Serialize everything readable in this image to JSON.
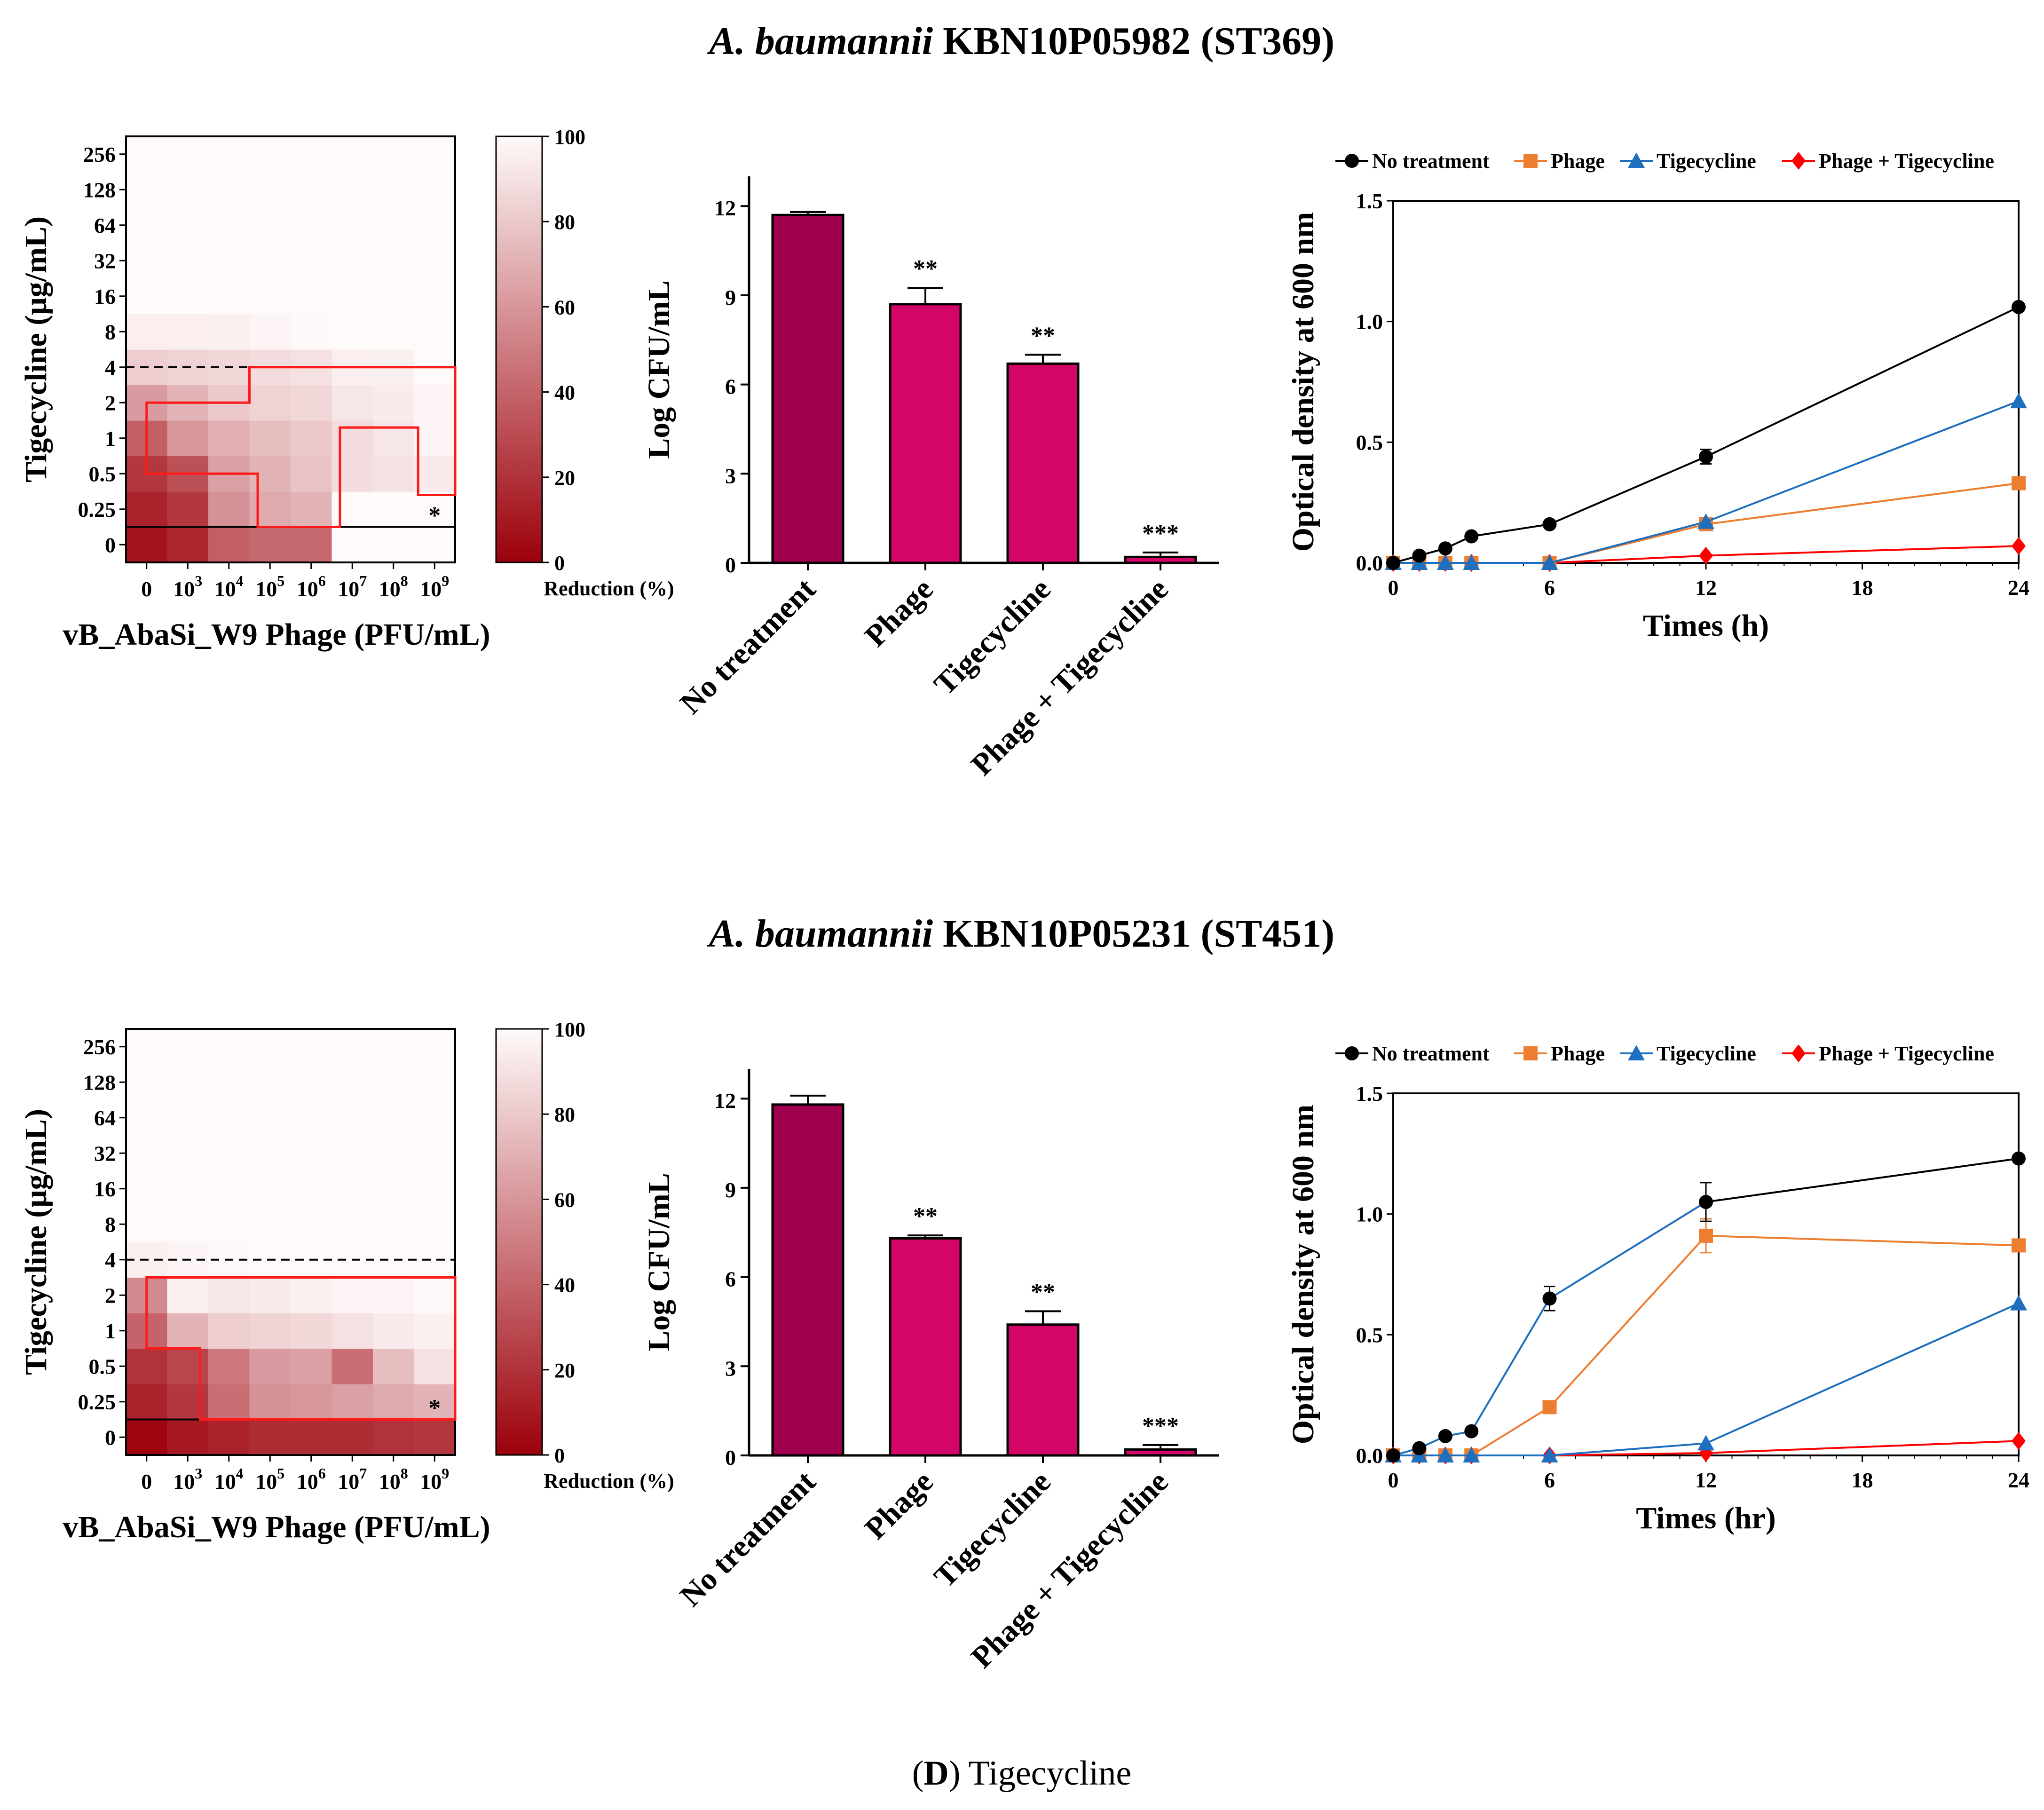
{
  "caption": {
    "prefix": "(",
    "letter": "D",
    "suffix": ") Tigecycline"
  },
  "panels": [
    {
      "title_italic": "A. baumannii",
      "title_rest": " KBN10P05982 (ST369)",
      "heatmap": {
        "ylabel": "Tigecycline (μg/mL)",
        "xlabel": "vB_AbaSi_W9 Phage (PFU/mL)",
        "yticks": [
          "0",
          "0.25",
          "0.5",
          "1",
          "2",
          "4",
          "8",
          "16",
          "32",
          "64",
          "128",
          "256"
        ],
        "xticks": [
          {
            "base": "0",
            "exp": ""
          },
          {
            "base": "10",
            "exp": "3"
          },
          {
            "base": "10",
            "exp": "4"
          },
          {
            "base": "10",
            "exp": "5"
          },
          {
            "base": "10",
            "exp": "6"
          },
          {
            "base": "10",
            "exp": "7"
          },
          {
            "base": "10",
            "exp": "8"
          },
          {
            "base": "10",
            "exp": "9"
          }
        ],
        "values": [
          [
            8,
            15,
            38,
            42,
            42,
            100,
            100,
            100
          ],
          [
            14,
            22,
            58,
            68,
            72,
            100,
            100,
            100
          ],
          [
            22,
            32,
            64,
            72,
            78,
            88,
            90,
            94
          ],
          [
            38,
            60,
            70,
            76,
            80,
            88,
            92,
            98
          ],
          [
            62,
            72,
            80,
            84,
            86,
            92,
            94,
            98
          ],
          [
            82,
            84,
            86,
            88,
            90,
            95,
            96,
            100
          ],
          [
            95,
            95,
            96,
            98,
            99,
            100,
            100,
            100
          ],
          [
            100,
            100,
            100,
            100,
            100,
            100,
            100,
            100
          ],
          [
            100,
            100,
            100,
            100,
            100,
            100,
            100,
            100
          ],
          [
            100,
            100,
            100,
            100,
            100,
            100,
            100,
            100
          ],
          [
            100,
            100,
            100,
            100,
            100,
            100,
            100,
            100
          ],
          [
            100,
            100,
            100,
            100,
            100,
            100,
            100,
            100
          ]
        ],
        "star": "*",
        "colorbar": {
          "label": "Reduction (%)",
          "ticks": [
            "0",
            "20",
            "40",
            "60",
            "80",
            "100"
          ]
        }
      },
      "bar": {
        "type": "bar",
        "ylabel": "Log CFU/mL",
        "ylim": [
          0,
          13
        ],
        "yticks": [
          "0",
          "3",
          "6",
          "9",
          "12"
        ],
        "categories": [
          "No treatment",
          "Phage",
          "Tigecycline",
          "Phage + Tigecycline"
        ],
        "values": [
          11.7,
          8.7,
          6.7,
          0.2
        ],
        "errors": [
          0.1,
          0.55,
          0.3,
          0.15
        ],
        "significance": [
          "",
          "**",
          "**",
          "***"
        ]
      },
      "line": {
        "type": "line",
        "ylabel": "Optical density at 600 nm",
        "xlabel": "Times (h)",
        "ylim": [
          0,
          1.5
        ],
        "xlim": [
          0,
          24
        ],
        "xticks": [
          "0",
          "6",
          "12",
          "18",
          "24"
        ],
        "yticks": [
          "0.0",
          "0.5",
          "1.0",
          "1.5"
        ],
        "series": [
          {
            "name": "No treatment",
            "color": "#000000",
            "marker": "circle",
            "x": [
              0,
              1,
              2,
              3,
              6,
              12,
              24
            ],
            "y": [
              0.0,
              0.03,
              0.06,
              0.11,
              0.16,
              0.44,
              1.06
            ],
            "err": [
              0,
              0,
              0,
              0,
              0,
              0.03,
              0
            ]
          },
          {
            "name": "Phage",
            "color": "#ed7d31",
            "marker": "square",
            "x": [
              0,
              1,
              2,
              3,
              6,
              12,
              24
            ],
            "y": [
              0,
              0,
              0,
              0,
              0,
              0.16,
              0.33
            ],
            "err": [
              0,
              0,
              0,
              0,
              0,
              0,
              0
            ]
          },
          {
            "name": "Tigecycline",
            "color": "#1f6fbf",
            "marker": "triangle",
            "x": [
              0,
              1,
              2,
              3,
              6,
              12,
              24
            ],
            "y": [
              0,
              0,
              0,
              0,
              0,
              0.17,
              0.67
            ],
            "err": [
              0,
              0,
              0,
              0,
              0,
              0,
              0
            ]
          },
          {
            "name": "Phage + Tigecycline",
            "color": "#ff0000",
            "marker": "diamond",
            "x": [
              0,
              1,
              2,
              3,
              6,
              12,
              24
            ],
            "y": [
              0,
              0,
              0,
              0,
              0,
              0.03,
              0.07
            ],
            "err": [
              0,
              0,
              0,
              0,
              0,
              0,
              0
            ]
          }
        ]
      }
    },
    {
      "title_italic": "A. baumannii",
      "title_rest": " KBN10P05231 (ST451)",
      "heatmap": {
        "ylabel": "Tigecycline (μg/mL)",
        "xlabel": "vB_AbaSi_W9 Phage (PFU/mL)",
        "yticks": [
          "0",
          "0.25",
          "0.5",
          "1",
          "2",
          "4",
          "8",
          "16",
          "32",
          "64",
          "128",
          "256"
        ],
        "xticks": [
          {
            "base": "0",
            "exp": ""
          },
          {
            "base": "10",
            "exp": "3"
          },
          {
            "base": "10",
            "exp": "4"
          },
          {
            "base": "10",
            "exp": "5"
          },
          {
            "base": "10",
            "exp": "6"
          },
          {
            "base": "10",
            "exp": "7"
          },
          {
            "base": "10",
            "exp": "8"
          },
          {
            "base": "10",
            "exp": "9"
          }
        ],
        "values": [
          [
            2,
            10,
            14,
            18,
            18,
            18,
            20,
            22
          ],
          [
            14,
            22,
            44,
            58,
            60,
            64,
            68,
            72
          ],
          [
            20,
            28,
            48,
            62,
            64,
            44,
            76,
            90
          ],
          [
            40,
            72,
            82,
            84,
            86,
            90,
            94,
            96
          ],
          [
            55,
            96,
            92,
            94,
            96,
            98,
            98,
            99
          ],
          [
            96,
            98,
            99,
            100,
            100,
            100,
            100,
            100
          ],
          [
            100,
            100,
            100,
            100,
            100,
            100,
            100,
            100
          ],
          [
            100,
            100,
            100,
            100,
            100,
            100,
            100,
            100
          ],
          [
            100,
            100,
            100,
            100,
            100,
            100,
            100,
            100
          ],
          [
            100,
            100,
            100,
            100,
            100,
            100,
            100,
            100
          ],
          [
            100,
            100,
            100,
            100,
            100,
            100,
            100,
            100
          ],
          [
            100,
            100,
            100,
            100,
            100,
            100,
            100,
            100
          ]
        ],
        "star": "*",
        "colorbar": {
          "label": "Reduction (%)",
          "ticks": [
            "0",
            "20",
            "40",
            "60",
            "80",
            "100"
          ]
        }
      },
      "bar": {
        "type": "bar",
        "ylabel": "Log CFU/mL",
        "ylim": [
          0,
          13
        ],
        "yticks": [
          "0",
          "3",
          "6",
          "9",
          "12"
        ],
        "categories": [
          "No treatment",
          "Phage",
          "Tigecycline",
          "Phage + Tigecycline"
        ],
        "values": [
          11.8,
          7.3,
          4.4,
          0.2
        ],
        "errors": [
          0.3,
          0.1,
          0.45,
          0.15
        ],
        "significance": [
          "",
          "**",
          "**",
          "***"
        ]
      },
      "line": {
        "type": "line",
        "ylabel": "Optical density at 600 nm",
        "xlabel": "Times (hr)",
        "ylim": [
          0,
          1.5
        ],
        "xlim": [
          0,
          24
        ],
        "xticks": [
          "0",
          "6",
          "12",
          "18",
          "24"
        ],
        "yticks": [
          "0.0",
          "0.5",
          "1.0",
          "1.5"
        ],
        "series": [
          {
            "name": "No treatment",
            "color": "#000000",
            "marker": "circle",
            "x": [
              0,
              1,
              2,
              3,
              6,
              12,
              24
            ],
            "y": [
              0.0,
              0.03,
              0.08,
              0.1,
              0.65,
              1.05,
              1.23
            ],
            "err": [
              0,
              0,
              0,
              0,
              0.05,
              0.08,
              0
            ]
          },
          {
            "name": "Phage",
            "color": "#ed7d31",
            "marker": "square",
            "x": [
              0,
              1,
              2,
              3,
              6,
              12,
              24
            ],
            "y": [
              0,
              0,
              0,
              0,
              0.2,
              0.91,
              0.87
            ],
            "err": [
              0,
              0,
              0,
              0,
              0,
              0.07,
              0
            ]
          },
          {
            "name": "Tigecycline",
            "color": "#1f6fbf",
            "marker": "triangle",
            "x": [
              0,
              1,
              2,
              3,
              6,
              12,
              24
            ],
            "y": [
              0,
              0,
              0,
              0,
              0,
              0.05,
              0.63
            ],
            "err": [
              0,
              0,
              0,
              0,
              0,
              0,
              0
            ]
          },
          {
            "name": "Phage + Tigecycline",
            "color": "#ff0000",
            "marker": "diamond",
            "x": [
              0,
              1,
              2,
              3,
              6,
              12,
              24
            ],
            "y": [
              0,
              0,
              0,
              0,
              0,
              0.01,
              0.06
            ],
            "err": [
              0,
              0,
              0,
              0,
              0,
              0,
              0
            ]
          }
        ]
      }
    }
  ],
  "chart_data": [
    {
      "type": "heatmap",
      "title": "A. baumannii KBN10P05982 (ST369)",
      "xlabel": "vB_AbaSi_W9 Phage (PFU/mL)",
      "ylabel": "Tigecycline (μg/mL)",
      "colorbar_label": "Reduction (%)",
      "value_range": [
        0,
        100
      ]
    },
    {
      "type": "bar",
      "title": "A. baumannii KBN10P05982 (ST369)",
      "ylabel": "Log CFU/mL",
      "categories": [
        "No treatment",
        "Phage",
        "Tigecycline",
        "Phage + Tigecycline"
      ],
      "values": [
        11.7,
        8.7,
        6.7,
        0.2
      ],
      "ylim": [
        0,
        13
      ]
    },
    {
      "type": "line",
      "title": "A. baumannii KBN10P05982 (ST369)",
      "xlabel": "Times (h)",
      "ylabel": "Optical density at 600 nm",
      "x": [
        0,
        1,
        2,
        3,
        6,
        12,
        24
      ],
      "series": [
        {
          "name": "No treatment",
          "values": [
            0.0,
            0.03,
            0.06,
            0.11,
            0.16,
            0.44,
            1.06
          ]
        },
        {
          "name": "Phage",
          "values": [
            0,
            0,
            0,
            0,
            0,
            0.16,
            0.33
          ]
        },
        {
          "name": "Tigecycline",
          "values": [
            0,
            0,
            0,
            0,
            0,
            0.17,
            0.67
          ]
        },
        {
          "name": "Phage + Tigecycline",
          "values": [
            0,
            0,
            0,
            0,
            0,
            0.03,
            0.07
          ]
        }
      ],
      "ylim": [
        0,
        1.5
      ]
    },
    {
      "type": "heatmap",
      "title": "A. baumannii KBN10P05231 (ST451)",
      "xlabel": "vB_AbaSi_W9 Phage (PFU/mL)",
      "ylabel": "Tigecycline (μg/mL)",
      "colorbar_label": "Reduction (%)",
      "value_range": [
        0,
        100
      ]
    },
    {
      "type": "bar",
      "title": "A. baumannii KBN10P05231 (ST451)",
      "ylabel": "Log CFU/mL",
      "categories": [
        "No treatment",
        "Phage",
        "Tigecycline",
        "Phage + Tigecycline"
      ],
      "values": [
        11.8,
        7.3,
        4.4,
        0.2
      ],
      "ylim": [
        0,
        13
      ]
    },
    {
      "type": "line",
      "title": "A. baumannii KBN10P05231 (ST451)",
      "xlabel": "Times (hr)",
      "ylabel": "Optical density at 600 nm",
      "x": [
        0,
        1,
        2,
        3,
        6,
        12,
        24
      ],
      "series": [
        {
          "name": "No treatment",
          "values": [
            0.0,
            0.03,
            0.08,
            0.1,
            0.65,
            1.05,
            1.23
          ]
        },
        {
          "name": "Phage",
          "values": [
            0,
            0,
            0,
            0,
            0.2,
            0.91,
            0.87
          ]
        },
        {
          "name": "Tigecycline",
          "values": [
            0,
            0,
            0,
            0,
            0,
            0.05,
            0.63
          ]
        },
        {
          "name": "Phage + Tigecycline",
          "values": [
            0,
            0,
            0,
            0,
            0,
            0.01,
            0.06
          ]
        }
      ],
      "ylim": [
        0,
        1.5
      ]
    }
  ]
}
